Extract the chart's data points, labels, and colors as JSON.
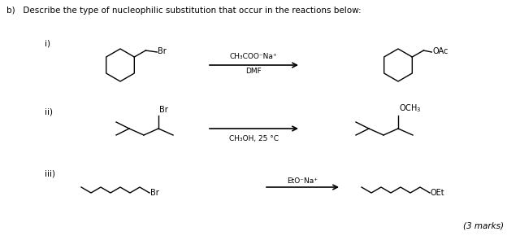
{
  "background_color": "#ffffff",
  "title_text": "b)   Describe the type of nucleophilic substitution that occur in the reactions below:",
  "label_i": "i)",
  "label_ii": "ii)",
  "label_iii": "iii)",
  "reagent_i_top": "CH₃COO⁻Na⁺",
  "reagent_i_bot": "DMF",
  "reagent_ii_bot": "CH₃OH, 25 °C",
  "reagent_iii_top": "EtO⁻Na⁺",
  "marks": "(3 marks)"
}
